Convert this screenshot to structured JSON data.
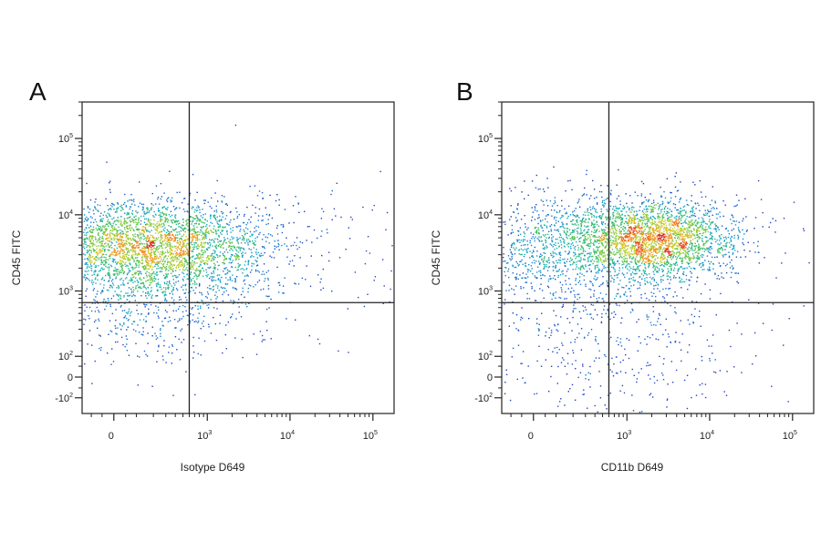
{
  "figure": {
    "panels": [
      {
        "letter": "A",
        "xlabel": "Isotype D649",
        "ylabel": "CD45 FITC"
      },
      {
        "letter": "B",
        "xlabel": "CD11b D649",
        "ylabel": "CD45 FITC"
      }
    ]
  },
  "chart_data": [
    {
      "type": "scatter",
      "title": "",
      "panel_label": "A",
      "xlabel": "Isotype D649",
      "ylabel": "CD45 FITC",
      "x_scale": "biexponential",
      "y_scale": "biexponential",
      "x_ticks": [
        {
          "value": 0,
          "base": "0",
          "exp": ""
        },
        {
          "value": 1000,
          "base": "10",
          "exp": "3"
        },
        {
          "value": 10000,
          "base": "10",
          "exp": "4"
        },
        {
          "value": 100000,
          "base": "10",
          "exp": "5"
        }
      ],
      "y_ticks": [
        {
          "value": -100,
          "base": "-10",
          "exp": "2"
        },
        {
          "value": 0,
          "base": "0",
          "exp": ""
        },
        {
          "value": 100,
          "base": "10",
          "exp": "2"
        },
        {
          "value": 1000,
          "base": "10",
          "exp": "3"
        },
        {
          "value": 10000,
          "base": "10",
          "exp": "4"
        },
        {
          "value": 100000,
          "base": "10",
          "exp": "5"
        }
      ],
      "quadrant_gate": {
        "x": 600,
        "y": 700
      },
      "density_peak": {
        "x": 100,
        "y": 4500
      },
      "populations": [
        {
          "x": 100,
          "y": 4500,
          "spread_x_decades": 0.8,
          "spread_y_decades": 0.28,
          "weight": 0.6
        },
        {
          "x": 250,
          "y": 2500,
          "spread_x_decades": 0.7,
          "spread_y_decades": 0.35,
          "weight": 0.25
        },
        {
          "x": 120,
          "y": 500,
          "spread_x_decades": 0.7,
          "spread_y_decades": 0.35,
          "weight": 0.1
        },
        {
          "x": 5000,
          "y": 3500,
          "spread_x_decades": 1.2,
          "spread_y_decades": 0.5,
          "weight": 0.05
        }
      ]
    },
    {
      "type": "scatter",
      "title": "",
      "panel_label": "B",
      "xlabel": "CD11b D649",
      "ylabel": "CD45 FITC",
      "x_scale": "biexponential",
      "y_scale": "biexponential",
      "x_ticks": [
        {
          "value": 0,
          "base": "0",
          "exp": ""
        },
        {
          "value": 1000,
          "base": "10",
          "exp": "3"
        },
        {
          "value": 10000,
          "base": "10",
          "exp": "4"
        },
        {
          "value": 100000,
          "base": "10",
          "exp": "5"
        }
      ],
      "y_ticks": [
        {
          "value": -100,
          "base": "-10",
          "exp": "2"
        },
        {
          "value": 0,
          "base": "0",
          "exp": ""
        },
        {
          "value": 100,
          "base": "10",
          "exp": "2"
        },
        {
          "value": 1000,
          "base": "10",
          "exp": "3"
        },
        {
          "value": 10000,
          "base": "10",
          "exp": "4"
        },
        {
          "value": 100000,
          "base": "10",
          "exp": "5"
        }
      ],
      "quadrant_gate": {
        "x": 600,
        "y": 700
      },
      "density_peak": {
        "x": 2000,
        "y": 5000
      },
      "populations": [
        {
          "x": 2000,
          "y": 5000,
          "spread_x_decades": 0.5,
          "spread_y_decades": 0.25,
          "weight": 0.55
        },
        {
          "x": 150,
          "y": 4000,
          "spread_x_decades": 0.8,
          "spread_y_decades": 0.35,
          "weight": 0.3
        },
        {
          "x": 300,
          "y": 700,
          "spread_x_decades": 0.9,
          "spread_y_decades": 0.5,
          "weight": 0.1
        },
        {
          "x": 600,
          "y": 50,
          "spread_x_decades": 1.0,
          "spread_y_decades": 0.5,
          "weight": 0.05
        }
      ]
    }
  ]
}
